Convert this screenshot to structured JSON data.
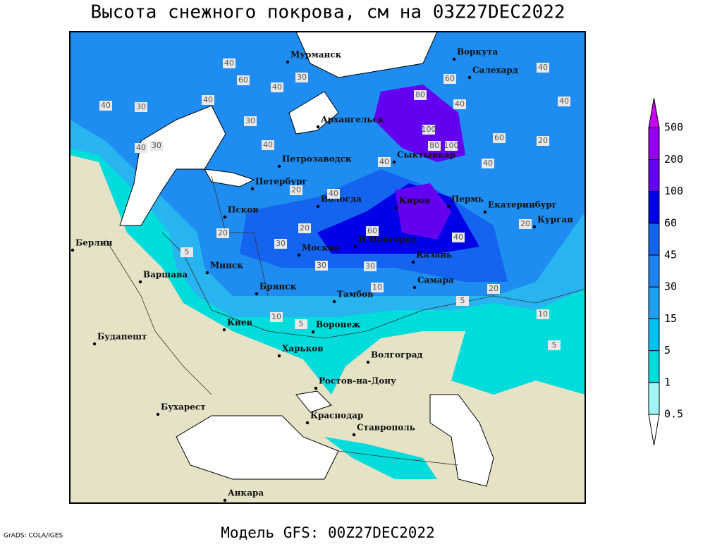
{
  "title": "Высота снежного покрова, см на 03Z27DEC2022",
  "footer": "Модель GFS: 00Z27DEC2022",
  "credit": "GrADS: COLA/IGES",
  "cities": [
    "Мурманск",
    "Воркута",
    "Салехард",
    "Архангельск",
    "Сыктывкар",
    "Петрозаводск",
    "Петербург",
    "Вологда",
    "Киров",
    "Пермь",
    "Екатеринбург",
    "Курган",
    "Псков",
    "Н.Новгород",
    "Москва",
    "Казань",
    "Берлин",
    "Варшава",
    "Минск",
    "Брянск",
    "Тамбов",
    "Самара",
    "Киев",
    "Воронеж",
    "Будапешт",
    "Харьков",
    "Волгоград",
    "Ростов-на-Дону",
    "Бухарест",
    "Краснодар",
    "Ставрополь",
    "Анкара"
  ],
  "contour_labels": [
    40,
    60,
    30,
    40,
    40,
    30,
    40,
    60,
    80,
    100,
    40,
    60,
    40,
    40,
    30,
    30,
    40,
    20,
    40,
    20,
    5,
    30,
    40,
    60,
    20,
    40,
    30,
    20,
    30,
    20,
    10,
    5,
    10,
    5,
    20,
    10,
    5,
    40,
    40,
    80,
    100
  ],
  "colorbar": {
    "levels": [
      0.5,
      1,
      5,
      15,
      30,
      45,
      60,
      100,
      200,
      500
    ],
    "colors": [
      "#ffffff",
      "#a0f5f5",
      "#00dcdc",
      "#00c0f0",
      "#1ea0f0",
      "#1e82f0",
      "#1464f0",
      "#0000e6",
      "#6400f0",
      "#9600f0",
      "#c800f0"
    ]
  }
}
